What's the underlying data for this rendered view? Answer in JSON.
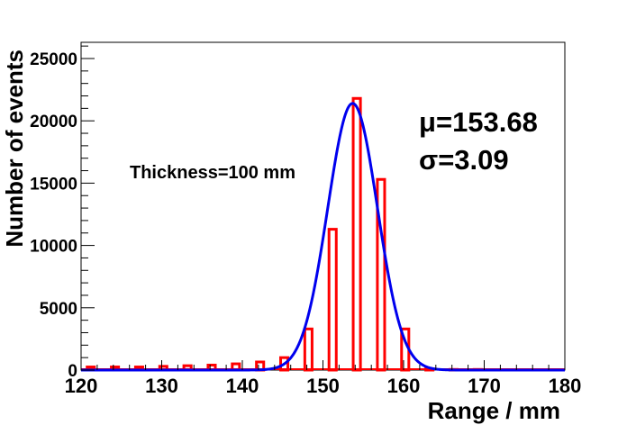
{
  "chart_data": {
    "type": "bar",
    "title": "",
    "xlabel": "Range / mm",
    "ylabel": "Number of events",
    "xlim": [
      120,
      180
    ],
    "ylim": [
      0,
      26300
    ],
    "x_ticks": [
      120,
      130,
      140,
      150,
      160,
      170,
      180
    ],
    "y_ticks": [
      0,
      5000,
      10000,
      15000,
      20000,
      25000
    ],
    "x_tick_labels": [
      "120",
      "130",
      "140",
      "150",
      "160",
      "170",
      "180"
    ],
    "y_tick_labels": [
      "0",
      "5000",
      "10000",
      "15000",
      "20000",
      "25000"
    ],
    "bin_width": 3,
    "histogram": {
      "name": "histogram",
      "color": "#ff0000",
      "bin_starts": [
        120,
        123,
        126,
        129,
        132,
        135,
        138,
        141,
        144,
        147,
        150,
        153,
        156,
        159,
        162,
        165,
        168,
        171,
        174,
        177
      ],
      "values": [
        250,
        250,
        250,
        300,
        350,
        400,
        500,
        650,
        1000,
        3300,
        11300,
        21800,
        15300,
        3300,
        100,
        50,
        50,
        0,
        0,
        0
      ]
    },
    "fit": {
      "name": "gaussian-fit",
      "color": "#0000ee",
      "mean": 153.68,
      "sigma": 3.09,
      "amplitude": 21400
    },
    "annotations": {
      "thickness": "Thickness=100 mm",
      "mu": "μ=153.68",
      "sigma": "σ=3.09"
    }
  }
}
